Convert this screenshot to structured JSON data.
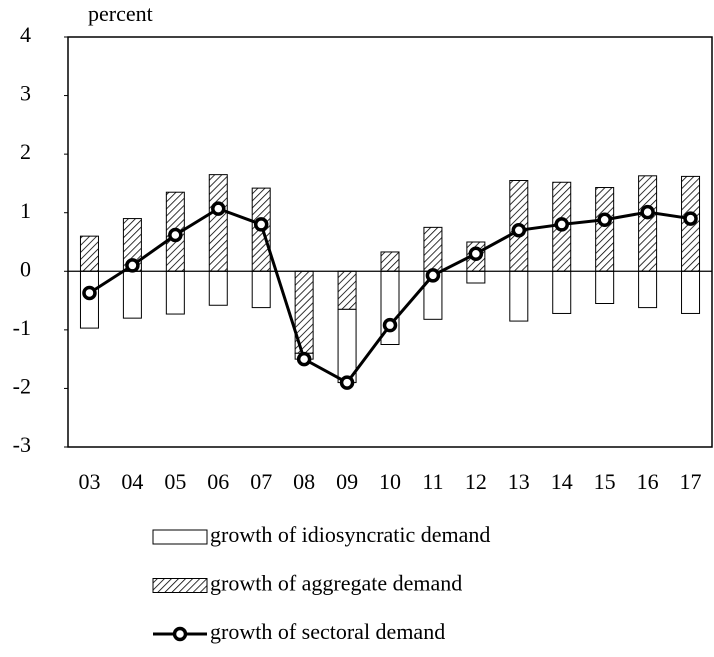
{
  "chart_data": {
    "type": "bar-line",
    "y_label": "percent",
    "categories": [
      "03",
      "04",
      "05",
      "06",
      "07",
      "08",
      "09",
      "10",
      "11",
      "12",
      "13",
      "14",
      "15",
      "16",
      "17"
    ],
    "series": [
      {
        "name": "growth of idiosyncratic demand",
        "kind": "bar",
        "color": "#ffffff",
        "values": [
          -0.97,
          -0.8,
          -0.73,
          -0.58,
          -0.62,
          -0.1,
          -1.25,
          -1.25,
          -0.82,
          -0.2,
          -0.85,
          -0.72,
          -0.55,
          -0.62,
          -0.72
        ]
      },
      {
        "name": "growth of aggregate demand",
        "kind": "bar",
        "color": "#000000",
        "pattern": "hatch",
        "values": [
          0.6,
          0.9,
          1.35,
          1.65,
          1.42,
          -1.4,
          -0.65,
          0.33,
          0.75,
          0.5,
          1.55,
          1.52,
          1.43,
          1.63,
          1.62
        ]
      },
      {
        "name": "growth of sectoral demand",
        "kind": "line",
        "color": "#000000",
        "values": [
          -0.37,
          0.1,
          0.62,
          1.07,
          0.8,
          -1.5,
          -1.9,
          -0.92,
          -0.07,
          0.3,
          0.7,
          0.8,
          0.88,
          1.01,
          0.9
        ]
      }
    ],
    "ylim": [
      -3,
      4
    ],
    "yticks": [
      -3,
      -2,
      -1,
      0,
      1,
      2,
      3,
      4
    ]
  }
}
